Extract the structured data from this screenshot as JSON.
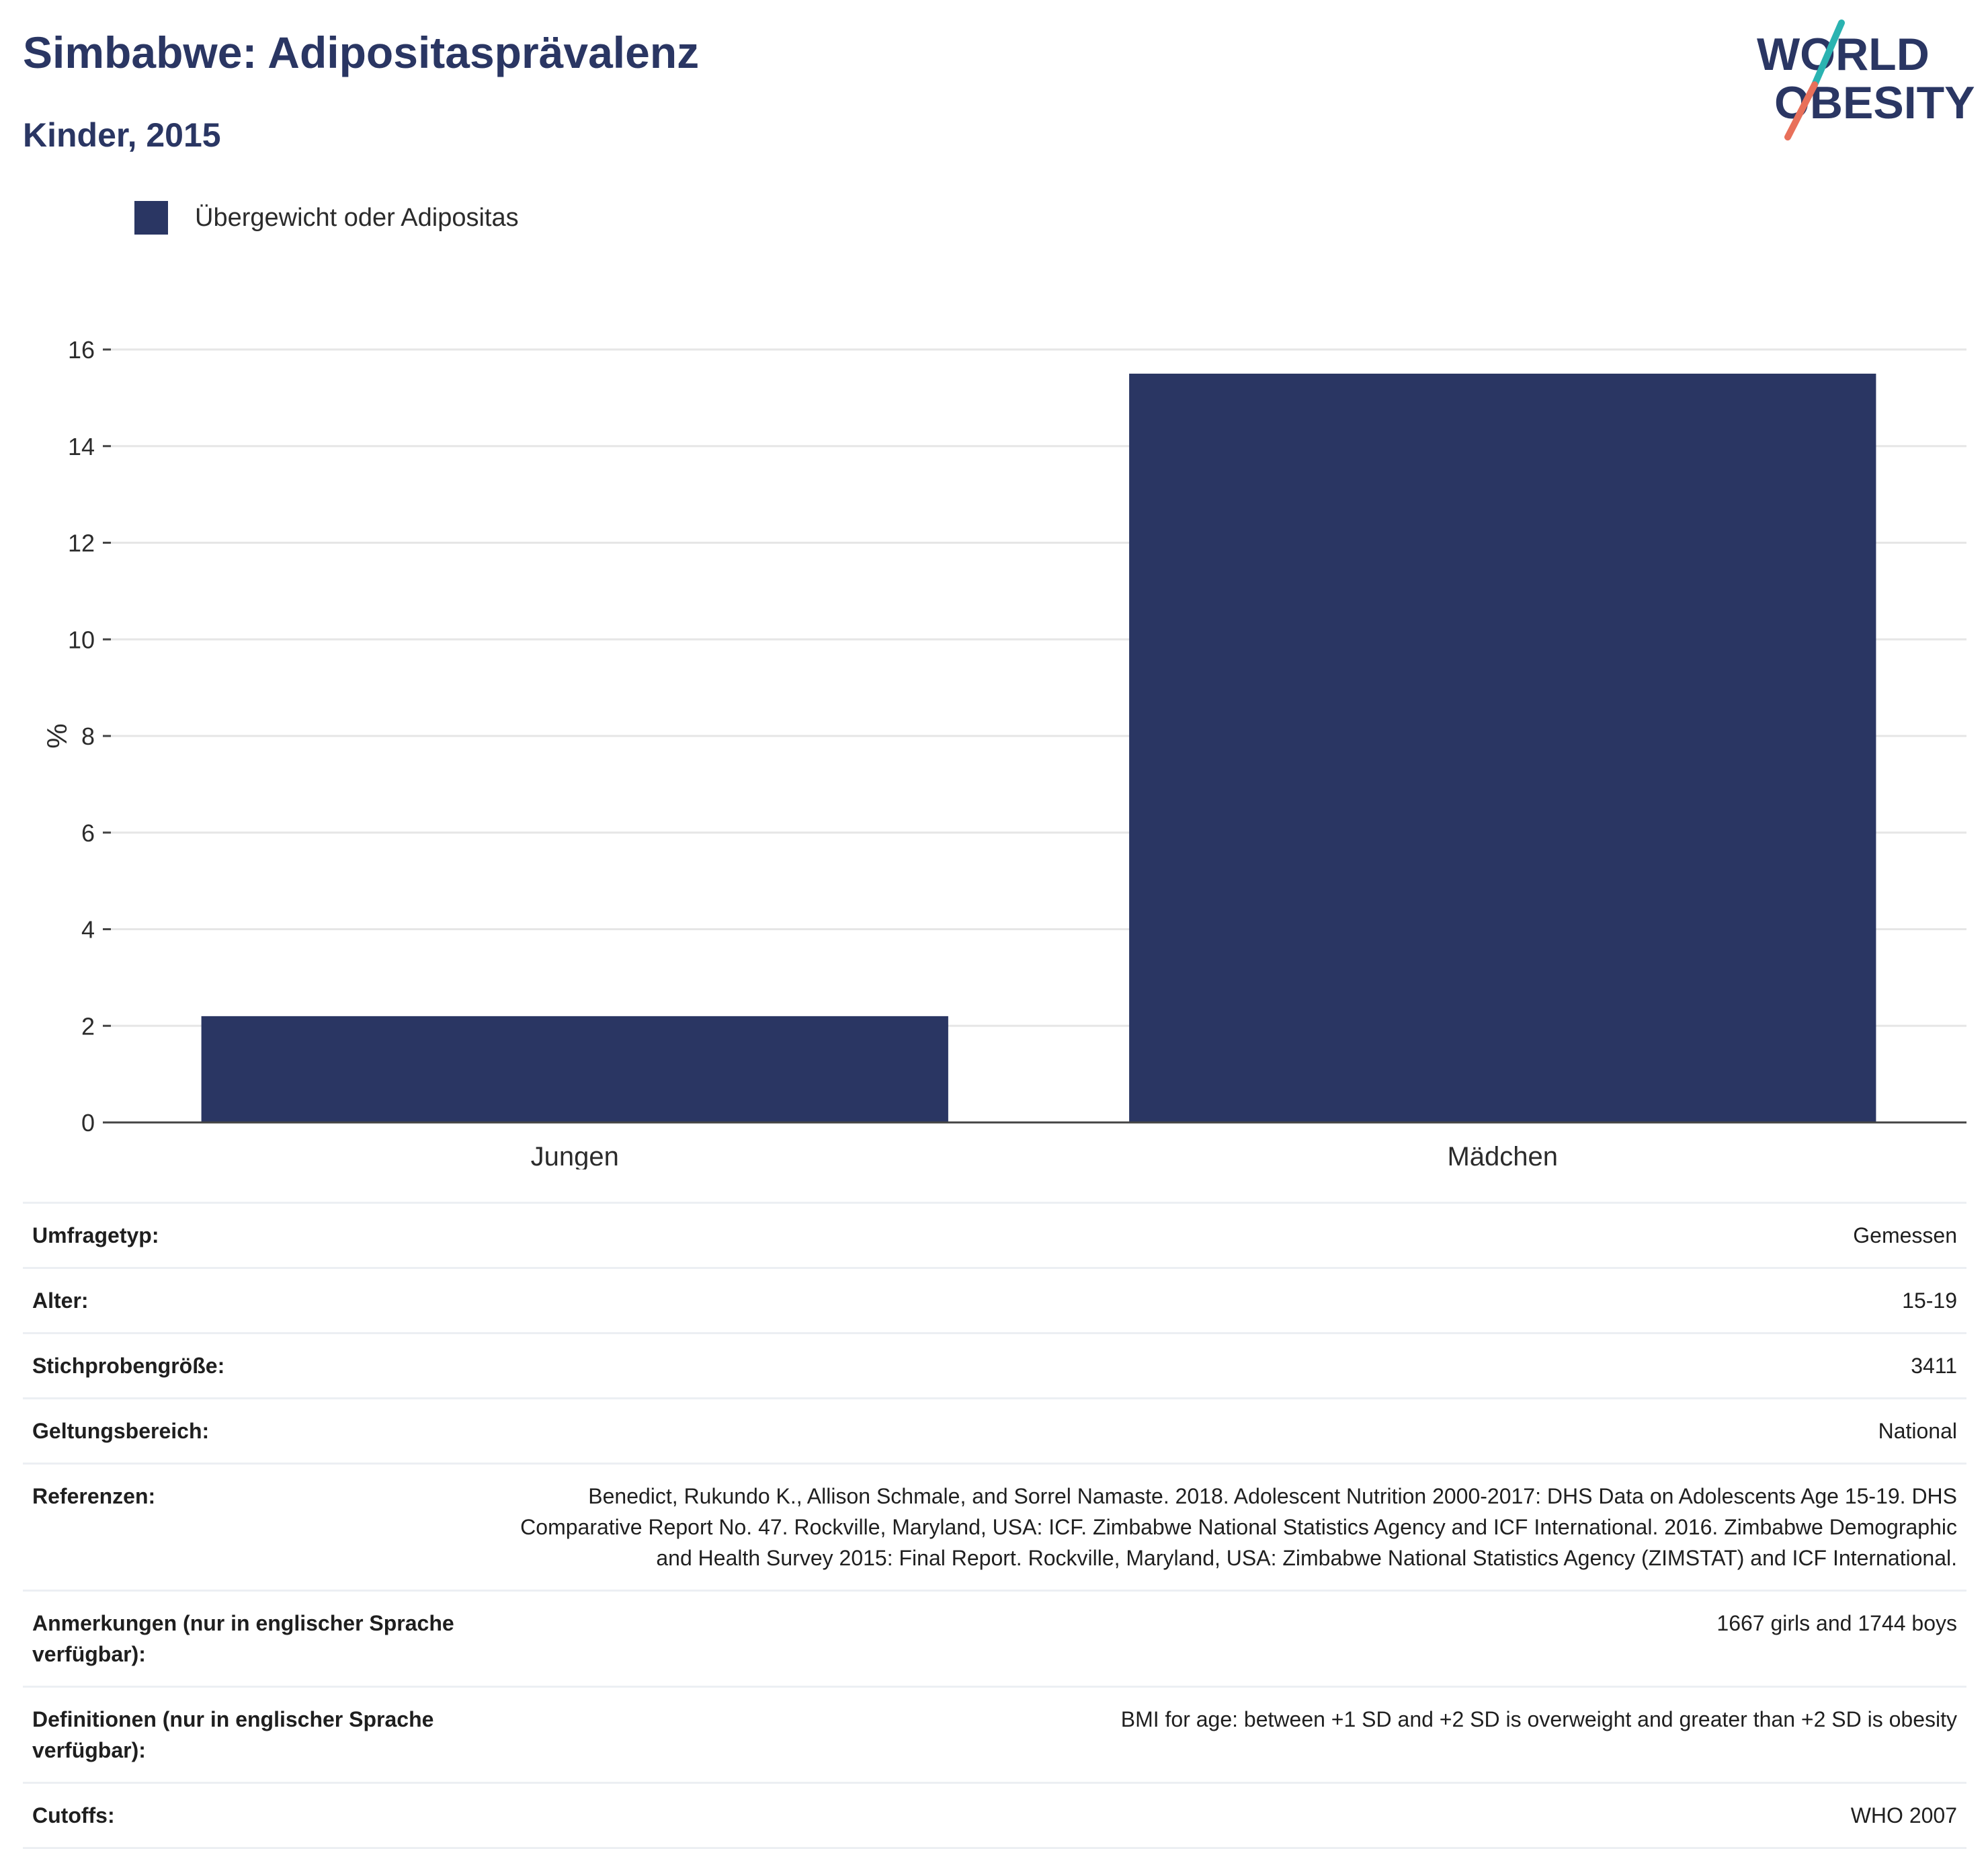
{
  "header": {
    "title": "Simbabwe: Adipositasprävalenz",
    "subtitle": "Kinder, 2015"
  },
  "logo": {
    "line1": "WORLD",
    "line2": "OBESITY",
    "colors": {
      "text": "#2a3663",
      "slash_teal": "#2ab3b1",
      "slash_coral": "#e8705a"
    }
  },
  "colors": {
    "bar": "#2a3663",
    "grid": "#e6e6e6",
    "axis": "#444444",
    "text": "#2a3663"
  },
  "chart_data": {
    "type": "bar",
    "categories": [
      "Jungen",
      "Mädchen"
    ],
    "series": [
      {
        "name": "Übergewicht oder Adipositas",
        "values": [
          2.2,
          15.5
        ]
      }
    ],
    "title": "Simbabwe: Adipositasprävalenz",
    "subtitle": "Kinder, 2015",
    "xlabel": "",
    "ylabel": "%",
    "ylim": [
      0,
      16
    ],
    "yticks": [
      0,
      2,
      4,
      6,
      8,
      10,
      12,
      14,
      16
    ],
    "grid": true,
    "legend_position": "top-left"
  },
  "info": [
    {
      "label": "Umfragetyp:",
      "value": "Gemessen"
    },
    {
      "label": "Alter:",
      "value": "15-19"
    },
    {
      "label": "Stichprobengröße:",
      "value": "3411"
    },
    {
      "label": "Geltungsbereich:",
      "value": "National"
    },
    {
      "label": "Referenzen:",
      "value": "Benedict, Rukundo K., Allison Schmale, and Sorrel Namaste. 2018. Adolescent Nutrition 2000-2017: DHS Data on Adolescents Age 15-19. DHS Comparative Report No. 47. Rockville, Maryland, USA: ICF. Zimbabwe National Statistics Agency and ICF International. 2016. Zimbabwe Demographic and Health Survey 2015: Final Report. Rockville, Maryland, USA: Zimbabwe National Statistics Agency (ZIMSTAT) and ICF International."
    },
    {
      "label": "Anmerkungen (nur in englischer Sprache verfügbar):",
      "value": "1667 girls and 1744 boys"
    },
    {
      "label": "Definitionen (nur in englischer Sprache verfügbar):",
      "value": "BMI for age: between +1 SD and +2 SD is overweight and greater than +2 SD is obesity"
    },
    {
      "label": "Cutoffs:",
      "value": "WHO 2007"
    }
  ]
}
